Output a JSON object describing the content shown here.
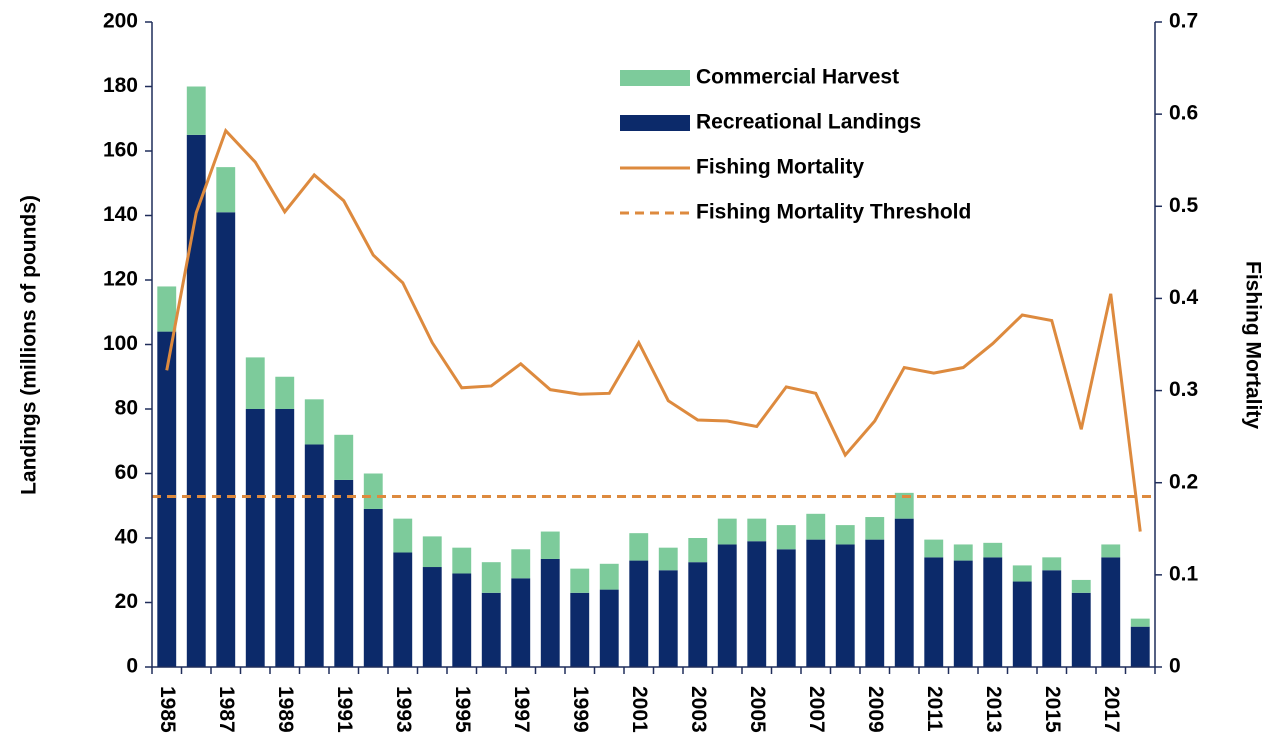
{
  "chart_data": {
    "type": "bar",
    "categories": [
      "1985",
      null,
      "1987",
      null,
      "1989",
      null,
      "1991",
      null,
      "1993",
      null,
      "1995",
      null,
      "1997",
      null,
      "1999",
      null,
      "2001",
      null,
      "2003",
      null,
      "2005",
      null,
      "2007",
      null,
      "2009",
      null,
      "2011",
      null,
      "2013",
      null,
      "2015",
      null,
      "2017",
      null
    ],
    "y_label": "Landings (millions of pounds)",
    "y2_label": "Fishing Mortality",
    "ylim": [
      0,
      200
    ],
    "yticks": [
      0,
      20,
      40,
      60,
      80,
      100,
      120,
      140,
      160,
      180,
      200
    ],
    "y2lim": [
      0,
      0.7
    ],
    "y2ticks": [
      0,
      0.1,
      0.2,
      0.3,
      0.4,
      0.5,
      0.6,
      0.7
    ],
    "series": [
      {
        "name": "Commercial Harvest",
        "type": "bar",
        "color": "#7dcb9b",
        "values": [
          14,
          15,
          14,
          16,
          10,
          14,
          14,
          11,
          10.5,
          9.5,
          8,
          9.5,
          9,
          8.5,
          7.5,
          8,
          8.5,
          7,
          7.5,
          8,
          7,
          7.5,
          8,
          6,
          7,
          8,
          5.5,
          5,
          4.5,
          5,
          4,
          4,
          4,
          2.5
        ]
      },
      {
        "name": "Recreational Landings",
        "type": "bar",
        "color": "#0c2a6a",
        "values": [
          104,
          165,
          141,
          80,
          80,
          69,
          58,
          49,
          35.5,
          31,
          29,
          23,
          27.5,
          33.5,
          23,
          24,
          33,
          30,
          32.5,
          38,
          39,
          36.5,
          39.5,
          38,
          39.5,
          46,
          34,
          33,
          34,
          26.5,
          30,
          23,
          34,
          12.5
        ]
      },
      {
        "name": "Fishing Mortality",
        "type": "line",
        "axis": "y2",
        "color": "#dd8a3e",
        "values": [
          0.322,
          0.493,
          0.582,
          0.548,
          0.494,
          0.534,
          0.506,
          0.447,
          0.417,
          0.352,
          0.303,
          0.305,
          0.329,
          0.301,
          0.296,
          0.297,
          0.352,
          0.289,
          0.268,
          0.267,
          0.261,
          0.304,
          0.297,
          0.23,
          0.267,
          0.325,
          0.319,
          0.325,
          0.351,
          0.382,
          0.376,
          0.258,
          0.405,
          0.147
        ]
      }
    ],
    "threshold": {
      "name": "Fishing Mortality Threshold",
      "axis": "y2",
      "color": "#dd8a3e",
      "dashed": true,
      "value": 0.185
    },
    "legend": "upper right"
  }
}
